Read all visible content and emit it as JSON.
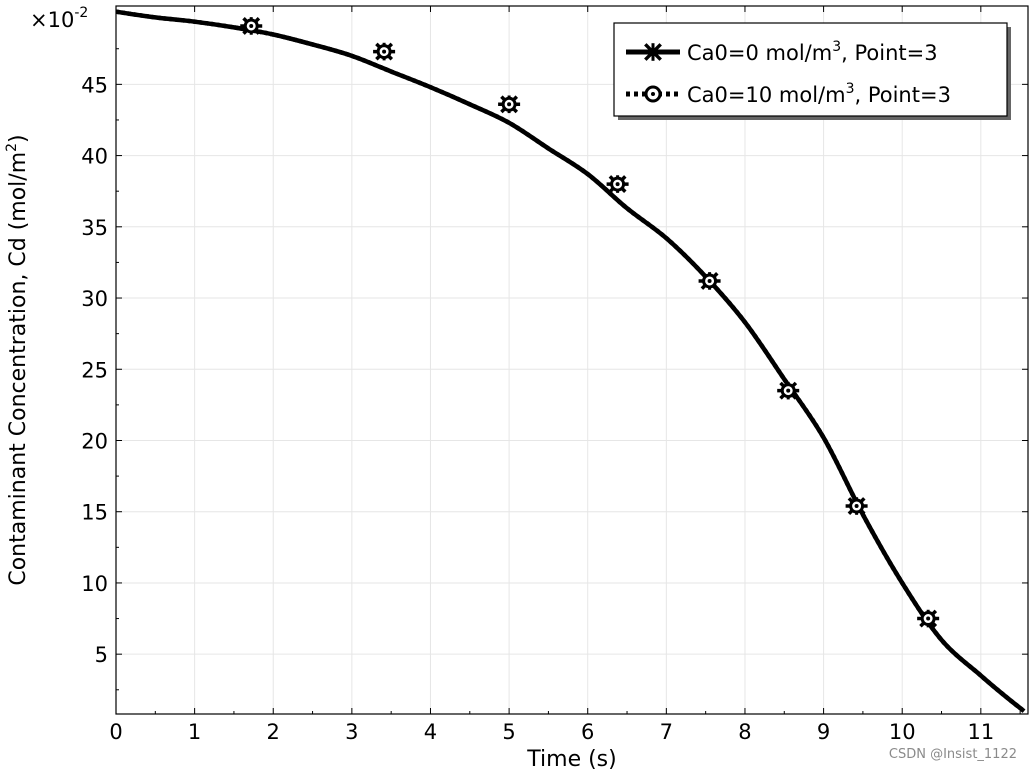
{
  "chart_data": {
    "type": "line",
    "title": "",
    "xlabel": "Time (s)",
    "ylabel_main": "Contaminant Concentration, Cd (mol/m",
    "ylabel_sup": "2",
    "ylabel_end": ")",
    "y_multiplier_base": "×10",
    "y_multiplier_exp": "-2",
    "xlim": [
      0,
      11.6
    ],
    "ylim": [
      0.8,
      50.5
    ],
    "xticks": [
      0,
      1,
      2,
      3,
      4,
      5,
      6,
      7,
      8,
      9,
      10,
      11
    ],
    "yticks": [
      5,
      10,
      15,
      20,
      25,
      30,
      35,
      40,
      45
    ],
    "grid": true,
    "legend_position": "top-right",
    "curve": {
      "x": [
        0,
        0.5,
        1,
        1.5,
        2,
        2.5,
        3,
        3.5,
        4,
        4.5,
        5,
        5.5,
        6,
        6.5,
        7,
        7.5,
        8,
        8.5,
        9,
        9.5,
        10,
        10.5,
        11,
        11.3,
        11.55
      ],
      "y": [
        50.1,
        49.7,
        49.4,
        49.0,
        48.5,
        47.8,
        47.0,
        45.9,
        44.8,
        43.6,
        42.3,
        40.5,
        38.7,
        36.3,
        34.2,
        31.5,
        28.3,
        24.3,
        20.2,
        14.8,
        10.0,
        6.0,
        3.5,
        2.1,
        1.0
      ]
    },
    "series": [
      {
        "name_base": "Ca0=0 mol/m",
        "name_sup": "3",
        "name_end": ", Point=3",
        "line_style": "solid",
        "marker": "asterisk",
        "marker_x": [
          1.72,
          3.41,
          5.0,
          6.38,
          7.55,
          8.55,
          9.42,
          10.33
        ],
        "marker_y": [
          49.1,
          47.3,
          43.6,
          38.0,
          31.2,
          23.5,
          15.4,
          7.5
        ]
      },
      {
        "name_base": "Ca0=10 mol/m",
        "name_sup": "3",
        "name_end": ", Point=3",
        "line_style": "dotted",
        "marker": "circle",
        "marker_x": [
          1.72,
          3.41,
          5.0,
          6.38,
          7.55,
          8.55,
          9.42,
          10.33
        ],
        "marker_y": [
          49.1,
          47.3,
          43.6,
          38.0,
          31.2,
          23.5,
          15.4,
          7.5
        ]
      }
    ],
    "colors": {
      "line": "#000000",
      "grid": "#e6e6e6",
      "background": "#ffffff"
    }
  },
  "watermark": "CSDN @Insist_1122"
}
